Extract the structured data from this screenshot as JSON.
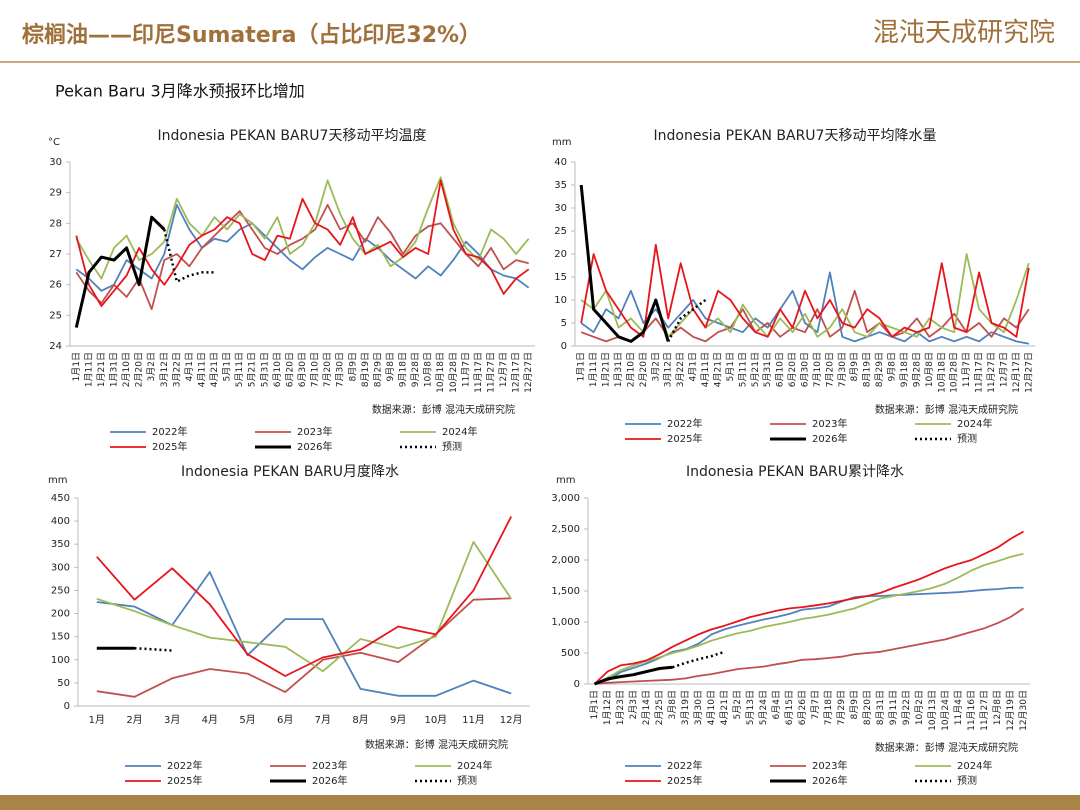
{
  "header": {
    "title": "棕榈油——印尼Sumatera（占比印尼32%）",
    "logo": "混沌天成研究院",
    "subtitle": "Pekan Baru 3月降水预报环比增加"
  },
  "chart_data": [
    {
      "type": "line",
      "title": "Indonesia PEKAN BARU7天移动平均温度",
      "unit": "°C",
      "source": "数据来源：彭博  混沌天成研究院",
      "categories": [
        "1月1日",
        "1月11日",
        "1月21日",
        "1月31日",
        "2月10日",
        "2月20日",
        "3月2日",
        "3月12日",
        "3月22日",
        "4月1日",
        "4月11日",
        "4月21日",
        "5月1日",
        "5月11日",
        "5月21日",
        "5月31日",
        "6月10日",
        "6月20日",
        "6月30日",
        "7月10日",
        "7月20日",
        "7月30日",
        "8月9日",
        "8月19日",
        "8月29日",
        "9月8日",
        "9月18日",
        "9月28日",
        "10月8日",
        "10月18日",
        "10月28日",
        "11月7日",
        "11月17日",
        "11月27日",
        "12月7日",
        "12月17日",
        "12月27日"
      ],
      "ylim": [
        24,
        30
      ],
      "yticks": [
        24,
        25,
        26,
        27,
        28,
        29,
        30
      ],
      "series": [
        {
          "name": "2022年",
          "color": "#4f81bd",
          "values": [
            26.5,
            26.2,
            25.8,
            26.0,
            26.8,
            26.5,
            26.2,
            27.0,
            28.6,
            27.8,
            27.2,
            27.5,
            27.4,
            27.8,
            28.0,
            27.6,
            27.2,
            26.8,
            26.5,
            26.9,
            27.2,
            27.0,
            26.8,
            27.5,
            27.2,
            26.8,
            26.5,
            26.2,
            26.6,
            26.3,
            26.8,
            27.4,
            27.0,
            26.5,
            26.3,
            26.2,
            25.9
          ]
        },
        {
          "name": "2023年",
          "color": "#c0504d",
          "values": [
            26.4,
            25.8,
            25.4,
            26.0,
            25.6,
            26.2,
            25.2,
            26.8,
            27.0,
            26.6,
            27.2,
            27.6,
            28.0,
            28.4,
            27.8,
            27.2,
            27.0,
            27.3,
            27.5,
            27.8,
            28.6,
            27.8,
            28.0,
            27.4,
            28.2,
            27.7,
            27.0,
            27.6,
            27.9,
            28.0,
            27.5,
            27.0,
            26.6,
            27.2,
            26.5,
            26.8,
            26.7
          ]
        },
        {
          "name": "2024年",
          "color": "#9bbb59",
          "values": [
            27.5,
            26.8,
            26.2,
            27.2,
            27.6,
            26.8,
            27.0,
            27.4,
            28.8,
            28.0,
            27.6,
            28.2,
            27.8,
            28.3,
            28.0,
            27.5,
            28.2,
            27.0,
            27.3,
            28.0,
            29.4,
            28.3,
            27.5,
            27.0,
            27.3,
            26.6,
            26.9,
            27.4,
            28.5,
            29.5,
            28.0,
            27.2,
            26.8,
            27.8,
            27.5,
            27.0,
            27.5
          ]
        },
        {
          "name": "2025年",
          "color": "#e8141b",
          "values": [
            27.6,
            26.0,
            25.3,
            25.8,
            26.3,
            27.2,
            26.5,
            26.0,
            26.6,
            27.3,
            27.6,
            27.8,
            28.2,
            28.0,
            27.0,
            26.8,
            27.6,
            27.5,
            28.8,
            28.0,
            27.8,
            27.3,
            28.2,
            27.0,
            27.2,
            27.4,
            26.9,
            27.2,
            27.0,
            29.4,
            27.8,
            27.0,
            26.9,
            26.5,
            25.7,
            26.2,
            26.5
          ]
        },
        {
          "name": "2026年",
          "color": "#000000",
          "style": "bold",
          "values": [
            24.6,
            26.4,
            26.9,
            26.8,
            27.2,
            26.0,
            28.2,
            27.8,
            null,
            null,
            null,
            null,
            null,
            null,
            null,
            null,
            null,
            null,
            null,
            null,
            null,
            null,
            null,
            null,
            null,
            null,
            null,
            null,
            null,
            null,
            null,
            null,
            null,
            null,
            null,
            null,
            null
          ]
        },
        {
          "name": "预测",
          "color": "#000000",
          "style": "dotted",
          "values": [
            null,
            null,
            null,
            null,
            null,
            null,
            null,
            27.8,
            26.1,
            26.3,
            26.4,
            26.4,
            null,
            null,
            null,
            null,
            null,
            null,
            null,
            null,
            null,
            null,
            null,
            null,
            null,
            null,
            null,
            null,
            null,
            null,
            null,
            null,
            null,
            null,
            null,
            null,
            null
          ]
        }
      ]
    },
    {
      "type": "line",
      "title": "Indonesia PEKAN BARU7天移动平均降水量",
      "unit": "mm",
      "source": "数据来源：彭博  混沌天成研究院",
      "categories": [
        "1月1日",
        "1月11日",
        "1月21日",
        "1月31日",
        "2月10日",
        "2月20日",
        "3月2日",
        "3月12日",
        "3月22日",
        "4月1日",
        "4月11日",
        "4月21日",
        "5月1日",
        "5月11日",
        "5月21日",
        "5月31日",
        "6月10日",
        "6月20日",
        "6月30日",
        "7月10日",
        "7月20日",
        "7月30日",
        "8月9日",
        "8月19日",
        "8月29日",
        "9月8日",
        "9月18日",
        "9月28日",
        "10月8日",
        "10月18日",
        "10月28日",
        "11月7日",
        "11月17日",
        "11月27日",
        "12月7日",
        "12月17日",
        "12月27日"
      ],
      "ylim": [
        0,
        40
      ],
      "yticks": [
        0,
        5,
        10,
        15,
        20,
        25,
        30,
        35,
        40
      ],
      "series": [
        {
          "name": "2022年",
          "color": "#4f81bd",
          "values": [
            5,
            3,
            8,
            6,
            12,
            5,
            8,
            4,
            7,
            10,
            6,
            5,
            4,
            3,
            6,
            4,
            8,
            12,
            5,
            3,
            16,
            2,
            1,
            2,
            3,
            2,
            1,
            3,
            1,
            2,
            1,
            2,
            1,
            3,
            2,
            1,
            0.5
          ]
        },
        {
          "name": "2023年",
          "color": "#c0504d",
          "values": [
            3,
            2,
            1,
            2,
            1,
            3,
            6,
            2,
            4,
            2,
            1,
            3,
            4,
            8,
            3,
            5,
            2,
            4,
            3,
            8,
            2,
            4,
            12,
            3,
            5,
            2,
            3,
            6,
            2,
            4,
            7,
            3,
            5,
            2,
            6,
            4,
            8
          ]
        },
        {
          "name": "2024年",
          "color": "#9bbb59",
          "values": [
            10,
            8,
            12,
            4,
            6,
            3,
            10,
            2,
            5,
            8,
            4,
            6,
            3,
            9,
            5,
            2,
            6,
            3,
            7,
            2,
            4,
            8,
            3,
            2,
            5,
            4,
            3,
            2,
            6,
            4,
            3,
            20,
            8,
            5,
            3,
            10,
            18
          ]
        },
        {
          "name": "2025年",
          "color": "#e8141b",
          "values": [
            5,
            20,
            12,
            8,
            4,
            2,
            22,
            6,
            18,
            8,
            4,
            12,
            10,
            6,
            3,
            2,
            8,
            4,
            12,
            6,
            10,
            5,
            4,
            8,
            6,
            2,
            4,
            3,
            4,
            18,
            4,
            3,
            16,
            5,
            4,
            2,
            17
          ]
        },
        {
          "name": "2026年",
          "color": "#000000",
          "style": "bold",
          "values": [
            35,
            8,
            5,
            2,
            1,
            3,
            10,
            1,
            null,
            null,
            null,
            null,
            null,
            null,
            null,
            null,
            null,
            null,
            null,
            null,
            null,
            null,
            null,
            null,
            null,
            null,
            null,
            null,
            null,
            null,
            null,
            null,
            null,
            null,
            null,
            null,
            null
          ]
        },
        {
          "name": "预测",
          "color": "#000000",
          "style": "dotted",
          "values": [
            null,
            null,
            null,
            null,
            null,
            null,
            null,
            1,
            6,
            8,
            10,
            null,
            null,
            null,
            null,
            null,
            null,
            null,
            null,
            null,
            null,
            null,
            null,
            null,
            null,
            null,
            null,
            null,
            null,
            null,
            null,
            null,
            null,
            null,
            null,
            null,
            null
          ]
        }
      ]
    },
    {
      "type": "line",
      "title": "Indonesia PEKAN BARU月度降水",
      "unit": "mm",
      "source": "数据来源：彭博  混沌天成研究院",
      "categories": [
        "1月",
        "2月",
        "3月",
        "4月",
        "5月",
        "6月",
        "7月",
        "8月",
        "9月",
        "10月",
        "11月",
        "12月"
      ],
      "ylim": [
        0,
        450
      ],
      "yticks": [
        0,
        50,
        100,
        150,
        200,
        250,
        300,
        350,
        400,
        450
      ],
      "series": [
        {
          "name": "2022年",
          "color": "#4f81bd",
          "values": [
            225,
            215,
            175,
            290,
            110,
            188,
            188,
            37,
            22,
            22,
            55,
            27
          ]
        },
        {
          "name": "2023年",
          "color": "#c0504d",
          "values": [
            32,
            20,
            60,
            80,
            70,
            30,
            100,
            115,
            95,
            155,
            230,
            233
          ]
        },
        {
          "name": "2024年",
          "color": "#9bbb59",
          "values": [
            232,
            205,
            175,
            148,
            138,
            128,
            75,
            145,
            125,
            150,
            355,
            232
          ]
        },
        {
          "name": "2025年",
          "color": "#e8141b",
          "values": [
            323,
            230,
            298,
            220,
            112,
            65,
            105,
            122,
            172,
            155,
            250,
            410
          ]
        },
        {
          "name": "2026年",
          "color": "#000000",
          "style": "bold",
          "values": [
            125,
            125,
            null,
            null,
            null,
            null,
            null,
            null,
            null,
            null,
            null,
            null
          ]
        },
        {
          "name": "预测",
          "color": "#000000",
          "style": "dotted",
          "values": [
            null,
            125,
            120,
            null,
            null,
            null,
            null,
            null,
            null,
            null,
            null,
            null
          ]
        }
      ]
    },
    {
      "type": "line",
      "title": "Indonesia PEKAN BARU累计降水",
      "unit": "mm",
      "source": "数据来源：彭博  混沌天成研究院",
      "categories": [
        "1月1日",
        "1月12日",
        "1月23日",
        "2月3日",
        "2月14日",
        "2月25日",
        "3月8日",
        "3月19日",
        "3月30日",
        "4月10日",
        "4月21日",
        "5月2日",
        "5月13日",
        "5月24日",
        "6月4日",
        "6月15日",
        "6月26日",
        "7月7日",
        "7月18日",
        "7月29日",
        "8月9日",
        "8月20日",
        "8月31日",
        "9月11日",
        "9月22日",
        "10月2日",
        "10月13日",
        "10月24日",
        "11月4日",
        "11月16日",
        "11月27日",
        "12月8日",
        "12月19日",
        "12月30日"
      ],
      "ylim": [
        0,
        3000
      ],
      "yticks": [
        0,
        500,
        {
          "value": 1000,
          "label": "1,000"
        },
        {
          "value": 1500,
          "label": "1,500"
        },
        {
          "value": 2000,
          "label": "2,000"
        },
        {
          "value": 2500,
          "label": "2,500"
        },
        {
          "value": 3000,
          "label": "3,000"
        }
      ],
      "series": [
        {
          "name": "2022年",
          "color": "#4f81bd",
          "values": [
            0,
            60,
            190,
            260,
            330,
            420,
            520,
            560,
            650,
            800,
            880,
            940,
            990,
            1040,
            1080,
            1130,
            1200,
            1220,
            1250,
            1330,
            1400,
            1420,
            1420,
            1430,
            1440,
            1450,
            1460,
            1470,
            1480,
            1500,
            1520,
            1530,
            1550,
            1555
          ]
        },
        {
          "name": "2023年",
          "color": "#c0504d",
          "values": [
            0,
            20,
            30,
            40,
            50,
            60,
            70,
            90,
            130,
            160,
            200,
            240,
            260,
            280,
            320,
            350,
            390,
            400,
            420,
            440,
            480,
            500,
            520,
            560,
            600,
            640,
            680,
            720,
            780,
            840,
            900,
            980,
            1080,
            1220
          ]
        },
        {
          "name": "2024年",
          "color": "#9bbb59",
          "values": [
            0,
            100,
            220,
            300,
            370,
            430,
            500,
            550,
            620,
            700,
            760,
            820,
            860,
            920,
            960,
            1000,
            1050,
            1080,
            1120,
            1170,
            1220,
            1300,
            1380,
            1420,
            1460,
            1500,
            1550,
            1620,
            1720,
            1830,
            1920,
            1980,
            2050,
            2100
          ]
        },
        {
          "name": "2025年",
          "color": "#e8141b",
          "values": [
            0,
            200,
            300,
            330,
            380,
            480,
            600,
            700,
            800,
            880,
            940,
            1010,
            1080,
            1130,
            1180,
            1220,
            1240,
            1270,
            1300,
            1340,
            1380,
            1420,
            1470,
            1550,
            1620,
            1690,
            1780,
            1870,
            1940,
            2000,
            2100,
            2200,
            2340,
            2460
          ]
        },
        {
          "name": "2026年",
          "color": "#000000",
          "style": "bold",
          "values": [
            0,
            80,
            120,
            150,
            200,
            250,
            270,
            null,
            null,
            null,
            null,
            null,
            null,
            null,
            null,
            null,
            null,
            null,
            null,
            null,
            null,
            null,
            null,
            null,
            null,
            null,
            null,
            null,
            null,
            null,
            null,
            null,
            null,
            null
          ]
        },
        {
          "name": "预测",
          "color": "#000000",
          "style": "dotted",
          "values": [
            null,
            null,
            null,
            null,
            null,
            null,
            270,
            340,
            400,
            450,
            520,
            null,
            null,
            null,
            null,
            null,
            null,
            null,
            null,
            null,
            null,
            null,
            null,
            null,
            null,
            null,
            null,
            null,
            null,
            null,
            null,
            null,
            null,
            null
          ]
        }
      ]
    }
  ]
}
